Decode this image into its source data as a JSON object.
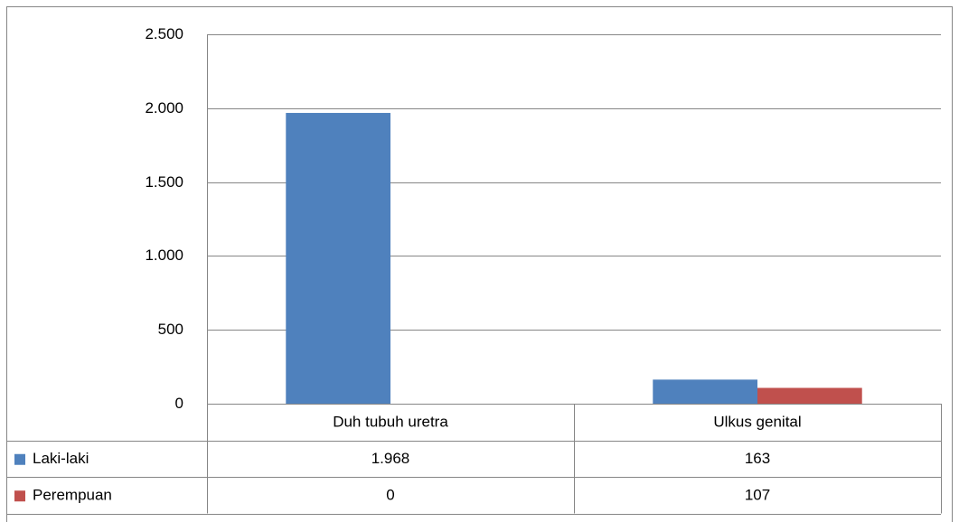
{
  "chart_data": {
    "type": "bar",
    "categories": [
      "Duh tubuh uretra",
      "Ulkus genital"
    ],
    "series": [
      {
        "name": "Laki-laki",
        "color": "#4f81bd",
        "values": [
          1968,
          163
        ],
        "value_labels": [
          "1.968",
          "163"
        ]
      },
      {
        "name": "Perempuan",
        "color": "#c0504d",
        "values": [
          0,
          107
        ]
      }
    ],
    "ylim": [
      0,
      2500
    ],
    "yticks": [
      0,
      500,
      {
        "value": 1000,
        "label": "1.000"
      },
      {
        "value": 1500,
        "label": "1.500"
      },
      {
        "value": 2000,
        "label": "2.000"
      },
      {
        "value": 2500,
        "label": "2.500"
      }
    ],
    "grid": true
  }
}
